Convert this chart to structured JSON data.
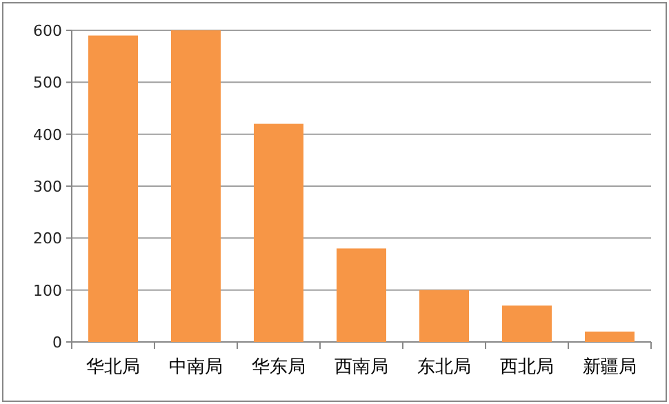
{
  "chart_data": {
    "type": "bar",
    "categories": [
      "华北局",
      "中南局",
      "华东局",
      "西南局",
      "东北局",
      "西北局",
      "新疆局"
    ],
    "values": [
      590,
      600,
      420,
      180,
      100,
      70,
      20
    ],
    "color": "#f79646",
    "ylim": [
      0,
      600
    ],
    "yticks": [
      0,
      100,
      200,
      300,
      400,
      500,
      600
    ],
    "grid": "y"
  }
}
